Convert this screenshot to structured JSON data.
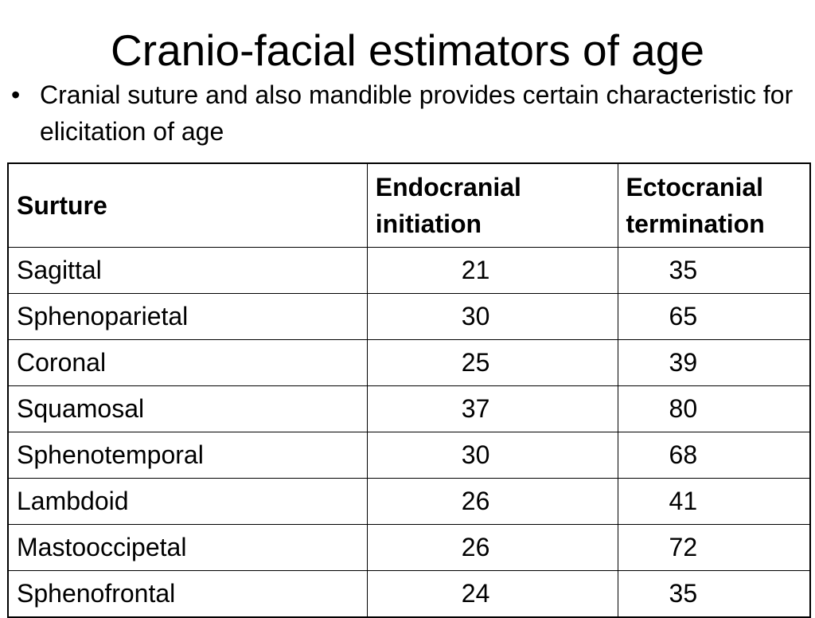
{
  "slide": {
    "title": "Cranio-facial estimators of age",
    "bullet_symbol": "•",
    "bullet_text": "Cranial suture and also mandible provides certain characteristic for elicitation of age"
  },
  "table": {
    "headers": {
      "suture": "Surture",
      "endocranial_line1": "Endocranial",
      "endocranial_line2": "initiation",
      "ectocranial_line1": "Ectocranial",
      "ectocranial_line2": "termination"
    },
    "rows": [
      {
        "suture": "Sagittal",
        "endocranial": "21",
        "ectocranial": "35"
      },
      {
        "suture": "Sphenoparietal",
        "endocranial": "30",
        "ectocranial": "65"
      },
      {
        "suture": "Coronal",
        "endocranial": "25",
        "ectocranial": "39"
      },
      {
        "suture": "Squamosal",
        "endocranial": "37",
        "ectocranial": "80"
      },
      {
        "suture": "Sphenotemporal",
        "endocranial": "30",
        "ectocranial": "68"
      },
      {
        "suture": "Lambdoid",
        "endocranial": "26",
        "ectocranial": "41"
      },
      {
        "suture": "Mastooccipetal",
        "endocranial": "26",
        "ectocranial": "72"
      },
      {
        "suture": "Sphenofrontal",
        "endocranial": "24",
        "ectocranial": "35"
      }
    ]
  }
}
